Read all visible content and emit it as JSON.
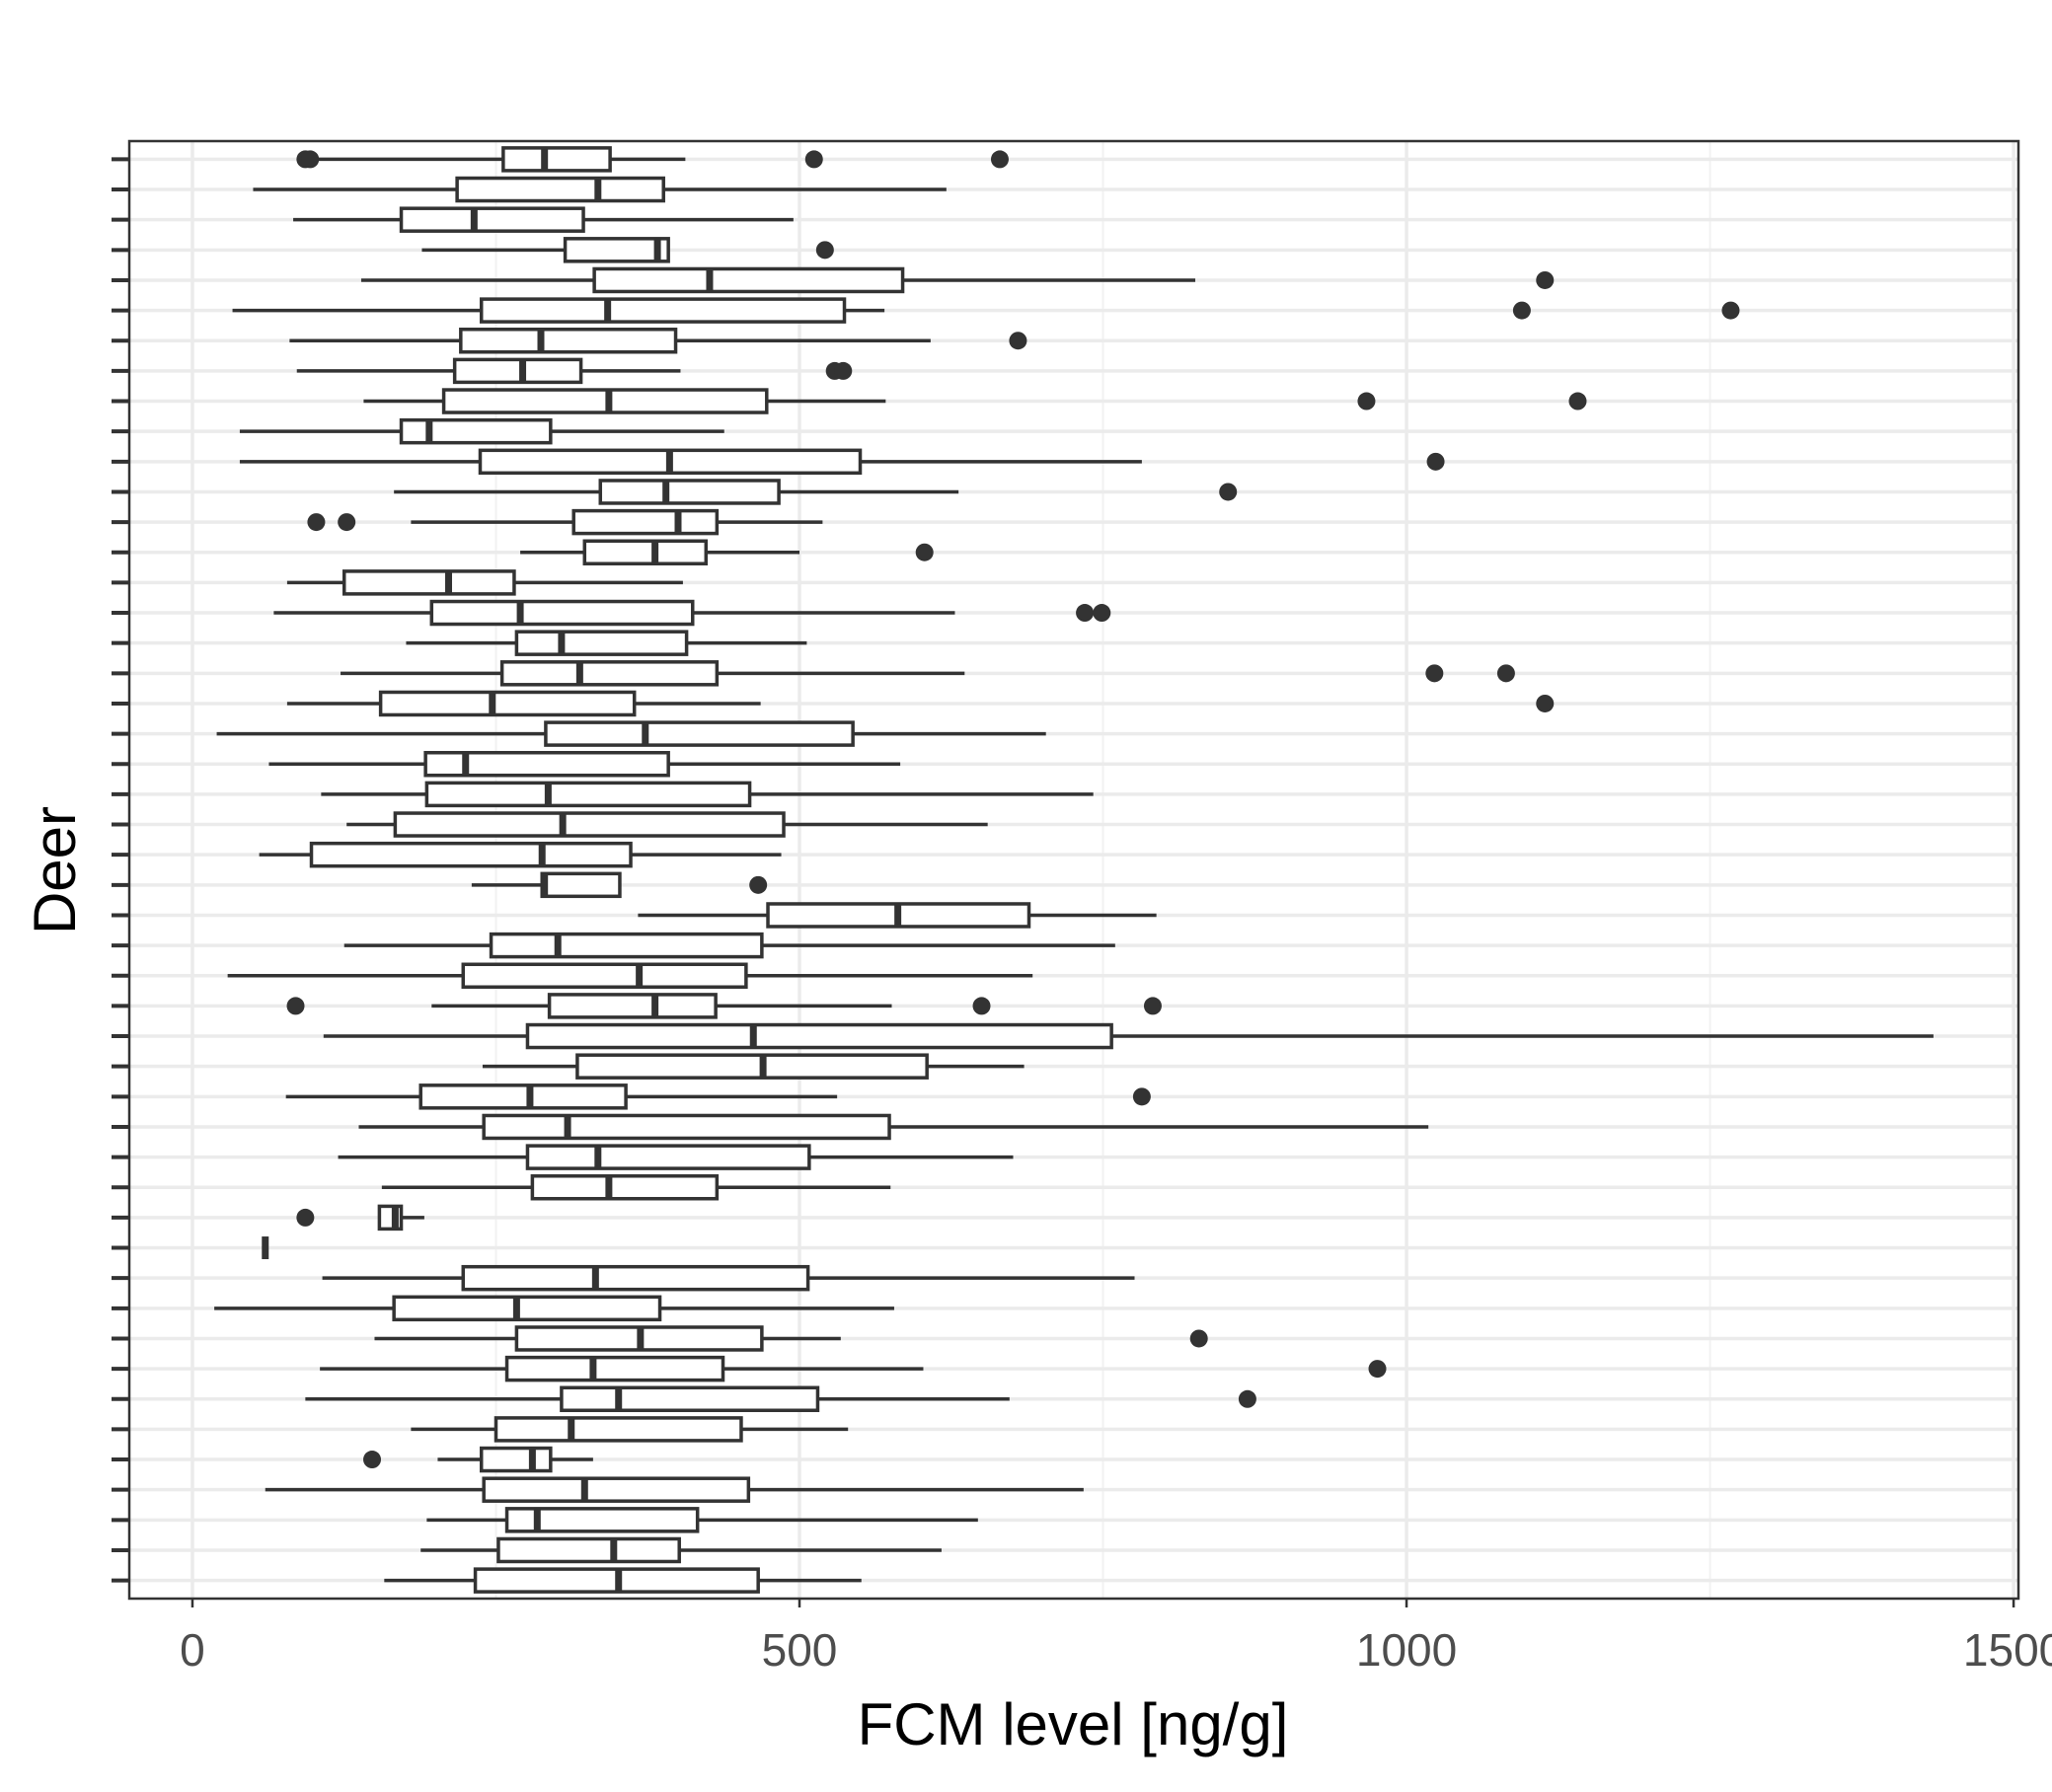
{
  "chart_data": {
    "type": "boxplot",
    "orientation": "horizontal",
    "x_label": "FCM level [ng/g]",
    "y_label": "Deer",
    "xlim": [
      -52,
      1504
    ],
    "xticks": [
      0,
      500,
      1000,
      1500
    ],
    "minor_xticks": [
      250,
      750,
      1250
    ],
    "grid": true,
    "color": "#333333",
    "fill": "#ffffff",
    "categories": [
      null,
      null,
      null,
      null,
      null,
      null,
      null,
      null,
      null,
      null,
      null,
      null,
      null,
      null,
      null,
      null,
      null,
      null,
      null,
      null,
      null,
      null,
      null,
      null,
      null,
      null,
      null,
      null,
      null,
      null,
      null,
      null,
      null,
      null,
      null,
      null,
      null,
      null,
      null,
      null,
      null,
      null,
      null,
      null,
      null,
      null,
      null,
      null
    ],
    "boxes": [
      {
        "low": 93,
        "q1": 256,
        "median": 290,
        "q3": 344,
        "high": 406,
        "outliers": [
          93,
          97,
          512,
          665
        ]
      },
      {
        "low": 50,
        "q1": 218,
        "median": 334,
        "q3": 388,
        "high": 621,
        "outliers": []
      },
      {
        "low": 83,
        "q1": 172,
        "median": 232,
        "q3": 322,
        "high": 495,
        "outliers": []
      },
      {
        "low": 189,
        "q1": 307,
        "median": 383,
        "q3": 392,
        "high": 392,
        "outliers": [
          521
        ]
      },
      {
        "low": 139,
        "q1": 331,
        "median": 426,
        "q3": 585,
        "high": 826,
        "outliers": [
          1114
        ]
      },
      {
        "low": 33,
        "q1": 238,
        "median": 342,
        "q3": 537,
        "high": 570,
        "outliers": [
          1095,
          1267
        ]
      },
      {
        "low": 80,
        "q1": 221,
        "median": 287,
        "q3": 398,
        "high": 608,
        "outliers": [
          680
        ]
      },
      {
        "low": 86,
        "q1": 216,
        "median": 272,
        "q3": 320,
        "high": 402,
        "outliers": [
          529,
          536
        ]
      },
      {
        "low": 141,
        "q1": 207,
        "median": 343,
        "q3": 473,
        "high": 571,
        "outliers": [
          967,
          1141
        ]
      },
      {
        "low": 39,
        "q1": 172,
        "median": 195,
        "q3": 295,
        "high": 438,
        "outliers": []
      },
      {
        "low": 39,
        "q1": 237,
        "median": 393,
        "q3": 550,
        "high": 782,
        "outliers": [
          1024
        ]
      },
      {
        "low": 166,
        "q1": 336,
        "median": 390,
        "q3": 483,
        "high": 631,
        "outliers": [
          853
        ]
      },
      {
        "low": 180,
        "q1": 314,
        "median": 400,
        "q3": 432,
        "high": 519,
        "outliers": [
          102,
          127
        ]
      },
      {
        "low": 270,
        "q1": 323,
        "median": 381,
        "q3": 423,
        "high": 500,
        "outliers": [
          603
        ]
      },
      {
        "low": 78,
        "q1": 125,
        "median": 211,
        "q3": 265,
        "high": 404,
        "outliers": []
      },
      {
        "low": 67,
        "q1": 197,
        "median": 270,
        "q3": 412,
        "high": 628,
        "outliers": [
          735,
          749
        ]
      },
      {
        "low": 176,
        "q1": 267,
        "median": 304,
        "q3": 407,
        "high": 506,
        "outliers": []
      },
      {
        "low": 122,
        "q1": 255,
        "median": 319,
        "q3": 432,
        "high": 636,
        "outliers": [
          1023,
          1082
        ]
      },
      {
        "low": 78,
        "q1": 155,
        "median": 247,
        "q3": 364,
        "high": 468,
        "outliers": [
          1114
        ]
      },
      {
        "low": 20,
        "q1": 291,
        "median": 373,
        "q3": 544,
        "high": 703,
        "outliers": []
      },
      {
        "low": 63,
        "q1": 192,
        "median": 225,
        "q3": 392,
        "high": 583,
        "outliers": []
      },
      {
        "low": 106,
        "q1": 193,
        "median": 293,
        "q3": 459,
        "high": 742,
        "outliers": []
      },
      {
        "low": 127,
        "q1": 167,
        "median": 305,
        "q3": 487,
        "high": 655,
        "outliers": []
      },
      {
        "low": 55,
        "q1": 98,
        "median": 288,
        "q3": 361,
        "high": 485,
        "outliers": []
      },
      {
        "low": 230,
        "q1": 288,
        "median": 290,
        "q3": 352,
        "high": 352,
        "outliers": [
          466
        ]
      },
      {
        "low": 367,
        "q1": 474,
        "median": 581,
        "q3": 689,
        "high": 794,
        "outliers": []
      },
      {
        "low": 125,
        "q1": 246,
        "median": 301,
        "q3": 469,
        "high": 760,
        "outliers": []
      },
      {
        "low": 29,
        "q1": 223,
        "median": 368,
        "q3": 456,
        "high": 692,
        "outliers": []
      },
      {
        "low": 197,
        "q1": 294,
        "median": 381,
        "q3": 431,
        "high": 576,
        "outliers": [
          85,
          650,
          791
        ]
      },
      {
        "low": 108,
        "q1": 276,
        "median": 462,
        "q3": 757,
        "high": 1434,
        "outliers": []
      },
      {
        "low": 239,
        "q1": 317,
        "median": 470,
        "q3": 605,
        "high": 685,
        "outliers": []
      },
      {
        "low": 77,
        "q1": 188,
        "median": 278,
        "q3": 357,
        "high": 531,
        "outliers": [
          782
        ]
      },
      {
        "low": 137,
        "q1": 240,
        "median": 309,
        "q3": 574,
        "high": 1018,
        "outliers": []
      },
      {
        "low": 120,
        "q1": 276,
        "median": 334,
        "q3": 508,
        "high": 676,
        "outliers": []
      },
      {
        "low": 156,
        "q1": 280,
        "median": 343,
        "q3": 432,
        "high": 575,
        "outliers": []
      },
      {
        "low": 154,
        "q1": 154,
        "median": 167,
        "q3": 172,
        "high": 191,
        "outliers": [
          93
        ]
      },
      {
        "low": 60,
        "q1": 60,
        "median": 60,
        "q3": 60,
        "high": 60,
        "outliers": []
      },
      {
        "low": 107,
        "q1": 223,
        "median": 332,
        "q3": 507,
        "high": 776,
        "outliers": []
      },
      {
        "low": 18,
        "q1": 166,
        "median": 267,
        "q3": 385,
        "high": 578,
        "outliers": []
      },
      {
        "low": 150,
        "q1": 267,
        "median": 369,
        "q3": 469,
        "high": 534,
        "outliers": [
          829
        ]
      },
      {
        "low": 105,
        "q1": 259,
        "median": 330,
        "q3": 437,
        "high": 602,
        "outliers": [
          976
        ]
      },
      {
        "low": 93,
        "q1": 304,
        "median": 351,
        "q3": 515,
        "high": 673,
        "outliers": [
          869
        ]
      },
      {
        "low": 180,
        "q1": 250,
        "median": 312,
        "q3": 452,
        "high": 540,
        "outliers": []
      },
      {
        "low": 202,
        "q1": 238,
        "median": 280,
        "q3": 295,
        "high": 330,
        "outliers": [
          148
        ]
      },
      {
        "low": 60,
        "q1": 240,
        "median": 323,
        "q3": 458,
        "high": 734,
        "outliers": []
      },
      {
        "low": 193,
        "q1": 259,
        "median": 284,
        "q3": 416,
        "high": 647,
        "outliers": []
      },
      {
        "low": 188,
        "q1": 252,
        "median": 347,
        "q3": 401,
        "high": 617,
        "outliers": []
      },
      {
        "low": 158,
        "q1": 233,
        "median": 351,
        "q3": 466,
        "high": 551,
        "outliers": []
      }
    ]
  }
}
